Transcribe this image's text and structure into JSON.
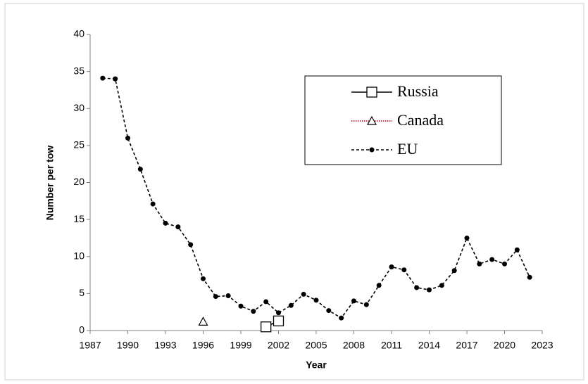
{
  "chart_data": {
    "type": "line",
    "x_label": "Year",
    "y_label": "Number per tow",
    "xlim": [
      1987,
      2023
    ],
    "xticks": [
      1987,
      1990,
      1993,
      1996,
      1999,
      2002,
      2005,
      2008,
      2011,
      2014,
      2017,
      2020,
      2023
    ],
    "ylim": [
      0,
      40
    ],
    "yticks": [
      0,
      5,
      10,
      15,
      20,
      25,
      30,
      35,
      40
    ],
    "legend": "upper right",
    "series": [
      {
        "name": "Russia",
        "color": "#000000",
        "marker": "square",
        "linestyle": "solid",
        "x": [
          2001,
          2002
        ],
        "values": [
          0.5,
          1.3
        ]
      },
      {
        "name": "Canada",
        "color": "#c00000",
        "marker": "triangle",
        "linestyle": "dotted",
        "x": [
          1996
        ],
        "values": [
          1.2
        ]
      },
      {
        "name": "EU",
        "color": "#000000",
        "marker": "circle",
        "linestyle": "dashed",
        "x": [
          1988,
          1989,
          1990,
          1991,
          1992,
          1993,
          1994,
          1995,
          1996,
          1997,
          1998,
          1999,
          2000,
          2001,
          2002,
          2003,
          2004,
          2005,
          2006,
          2007,
          2008,
          2009,
          2010,
          2011,
          2012,
          2013,
          2014,
          2015,
          2016,
          2017,
          2018,
          2019,
          2020,
          2021,
          2022
        ],
        "values": [
          34.1,
          34.0,
          26.0,
          21.8,
          17.1,
          14.5,
          14.0,
          11.6,
          7.0,
          4.6,
          4.7,
          3.3,
          2.6,
          3.9,
          2.4,
          3.4,
          4.9,
          4.1,
          2.7,
          1.7,
          4.0,
          3.5,
          6.1,
          8.6,
          8.2,
          5.8,
          5.5,
          6.1,
          8.1,
          12.5,
          9.0,
          9.6,
          9.0,
          10.9,
          7.2
        ]
      }
    ]
  }
}
